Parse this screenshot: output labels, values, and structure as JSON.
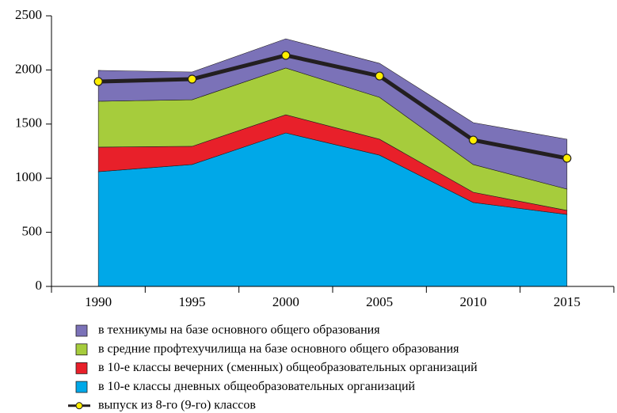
{
  "chart_data": {
    "type": "area",
    "categories": [
      "1990",
      "1995",
      "2000",
      "2005",
      "2010",
      "2015"
    ],
    "stacked": true,
    "series": [
      {
        "name": "в техникумы на базе основного общего образования",
        "color": "#7b72b8",
        "values": [
          285,
          256,
          270,
          314,
          387,
          461
        ]
      },
      {
        "name": "в средние профтехучилища на базе основного общего образования",
        "color": "#a6cc3c",
        "values": [
          424,
          431,
          432,
          387,
          256,
          197
        ]
      },
      {
        "name": "в 10-е классы вечерних (сменных) общеобразовательных организаций",
        "color": "#e8202a",
        "values": [
          227,
          168,
          168,
          147,
          95,
          37
        ]
      },
      {
        "name": "в 10-е классы дневных общеобразовательных организаций",
        "color": "#00a8e8",
        "values": [
          1060,
          1126,
          1418,
          1213,
          775,
          665
        ]
      }
    ],
    "line_series": {
      "name": "выпуск из 8-го (9-го) классов",
      "color": "#231f20",
      "marker_color": "#ffee00",
      "values": [
        1893,
        1915,
        2135,
        1944,
        1352,
        1184
      ]
    },
    "ylim": [
      0,
      2500
    ],
    "yticks": [
      0,
      500,
      1000,
      1500,
      2000,
      2500
    ]
  }
}
